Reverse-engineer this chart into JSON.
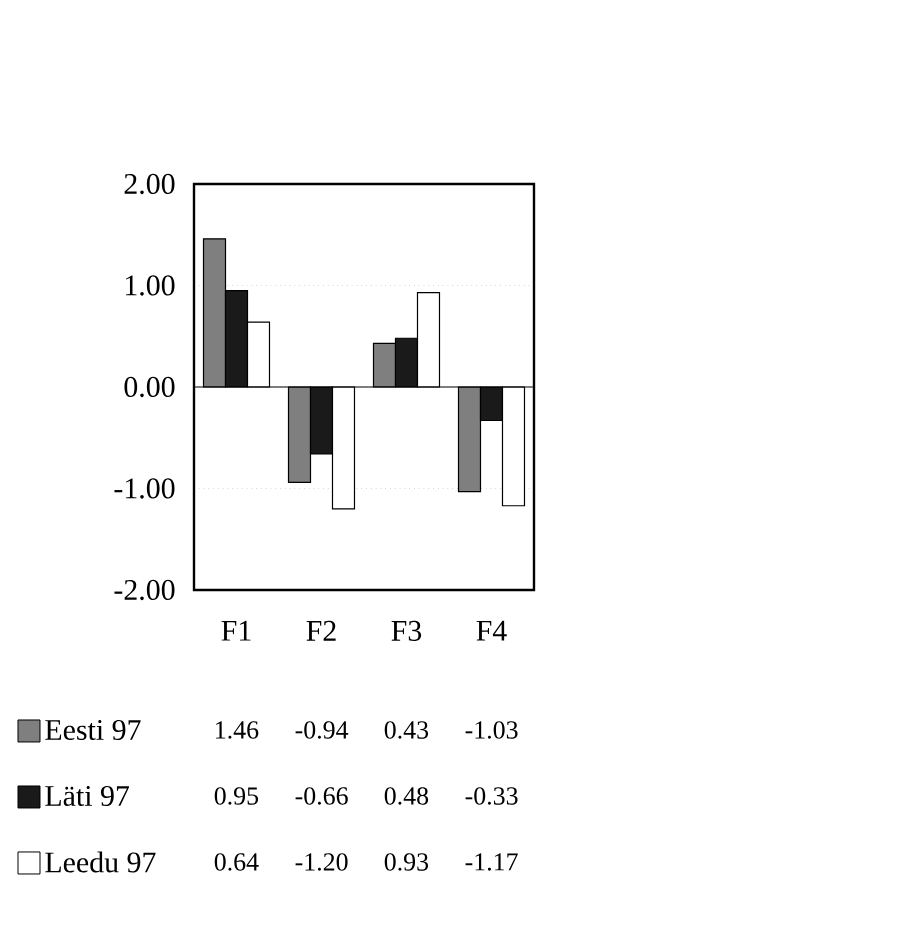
{
  "chart_data": {
    "type": "bar",
    "categories": [
      "F1",
      "F2",
      "F3",
      "F4"
    ],
    "series": [
      {
        "name": "Eesti 97",
        "color": "#7f7f7f",
        "values": [
          1.46,
          -0.94,
          0.43,
          -1.03
        ],
        "value_labels": [
          "1.46",
          "-0.94",
          "0.43",
          "-1.03"
        ]
      },
      {
        "name": "Läti 97",
        "color": "#1a1a1a",
        "values": [
          0.95,
          -0.66,
          0.48,
          -0.33
        ],
        "value_labels": [
          "0.95",
          "-0.66",
          "0.48",
          "-0.33"
        ]
      },
      {
        "name": "Leedu 97",
        "color": "#ffffff",
        "values": [
          0.64,
          -1.2,
          0.93,
          -1.17
        ],
        "value_labels": [
          "0.64",
          "-1.20",
          "0.93",
          "-1.17"
        ]
      }
    ],
    "ylim": [
      -2,
      2
    ],
    "yticks": [
      {
        "value": -2,
        "label": "-2.00"
      },
      {
        "value": -1,
        "label": "-1.00"
      },
      {
        "value": 0,
        "label": "0.00"
      },
      {
        "value": 1,
        "label": "1.00"
      },
      {
        "value": 2,
        "label": "2.00"
      }
    ],
    "legend": "bottom",
    "grid": "y"
  }
}
